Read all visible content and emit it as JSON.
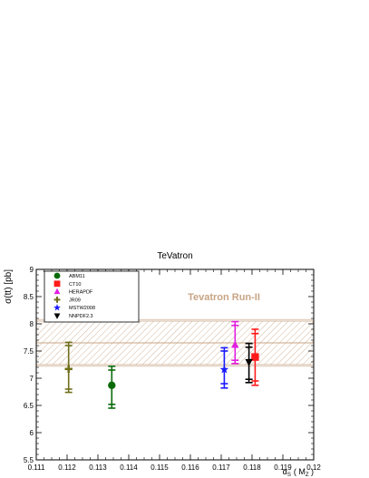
{
  "chart_data": {
    "type": "scatter",
    "title": "TeVatron",
    "xlabel_symbol": "α",
    "xlabel_sub": "S",
    "xlabel_arg": "( M",
    "xlabel_arg_sub": "Z",
    "xlabel_close": " )",
    "ylabel": "σ(tt) [pb]",
    "annotation": "Tevatron Run-II",
    "xlim": [
      0.111,
      0.12
    ],
    "ylim": [
      5.5,
      9.0
    ],
    "x_ticks": [
      "0.111",
      "0.112",
      "0.113",
      "0.114",
      "0.115",
      "0.116",
      "0.117",
      "0.118",
      "0.119",
      "0.12"
    ],
    "y_ticks": [
      "5.5",
      "6",
      "6.5",
      "7",
      "7.5",
      "8",
      "8.5",
      "9"
    ],
    "band": {
      "center": 7.65,
      "inner_low": 7.25,
      "inner_high": 8.05,
      "outer_low": 7.22,
      "outer_high": 8.08,
      "color": "#c8a485"
    },
    "series": [
      {
        "name": "ABM11",
        "marker": "circle",
        "color": "#0a6a0a",
        "x": 0.11345,
        "y": 6.87,
        "err_inner": [
          6.52,
          7.15
        ],
        "err_outer": [
          6.45,
          7.22
        ]
      },
      {
        "name": "CT10",
        "marker": "square",
        "color": "#ff1a1a",
        "x": 0.1181,
        "y": 7.39,
        "err_inner": [
          6.95,
          7.82
        ],
        "err_outer": [
          6.87,
          7.9
        ]
      },
      {
        "name": "HERAPDF",
        "marker": "triangle-up",
        "color": "#e21ee2",
        "x": 0.11745,
        "y": 7.61,
        "err_inner": [
          7.33,
          7.97
        ],
        "err_outer": [
          7.27,
          8.04
        ]
      },
      {
        "name": "JR09",
        "marker": "cross",
        "color": "#6f6f1a",
        "x": 0.11205,
        "y": 7.17,
        "err_inner": [
          6.8,
          7.6
        ],
        "err_outer": [
          6.74,
          7.66
        ]
      },
      {
        "name": "MSTW2008",
        "marker": "star",
        "color": "#1a1aff",
        "x": 0.1171,
        "y": 7.16,
        "err_inner": [
          6.9,
          7.5
        ],
        "err_outer": [
          6.82,
          7.56
        ]
      },
      {
        "name": "NNPDF2.3",
        "marker": "triangle-down",
        "color": "#000000",
        "x": 0.1179,
        "y": 7.3,
        "err_inner": [
          6.98,
          7.57
        ],
        "err_outer": [
          6.92,
          7.64
        ]
      }
    ],
    "legend_position": "top-left",
    "grid": false
  }
}
